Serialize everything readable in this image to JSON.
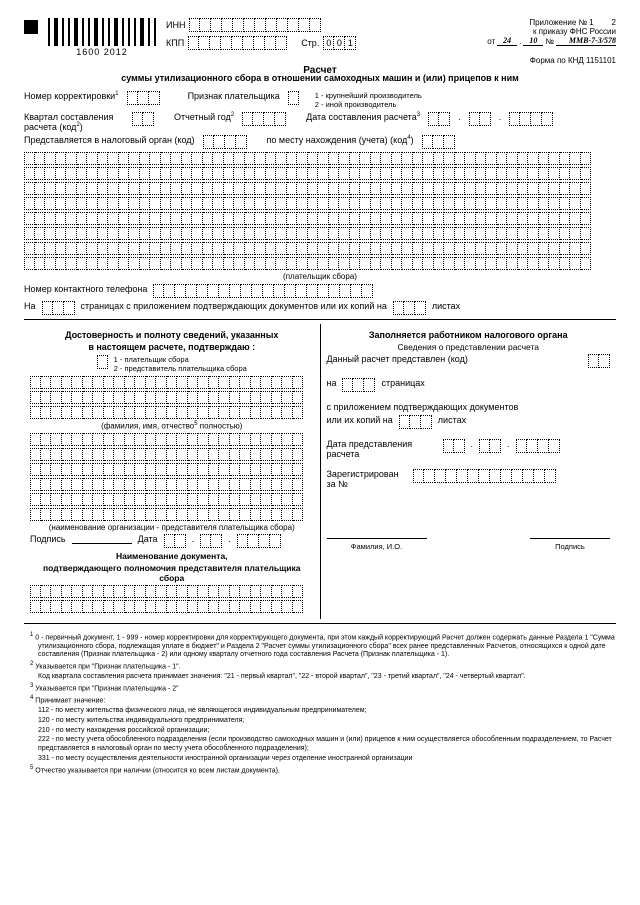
{
  "header": {
    "barcode_number": "1600 2012",
    "inn_label": "ИНН",
    "kpp_label": "КПП",
    "str_label": "Стр.",
    "str_value": [
      "0",
      "0",
      "1"
    ],
    "app_line1": "Приложение № 1",
    "app_line2": "к приказу ФНС России",
    "app_page": "2",
    "ot_label": "от",
    "ot_day": "24",
    "ot_month": "10",
    "no_label": "№",
    "no_hand": "ММВ-7-3/578"
  },
  "title": "Расчет",
  "subtitle": "суммы утилизационного сбора в отношении самоходных машин и (или) прицепов к ним",
  "forma": "Форма по КНД 1151101",
  "fields": {
    "nomer_korr": "Номер корректировки",
    "priznak": "Признак плательщика",
    "priznak_note1": "1 - крупнейший производитель",
    "priznak_note2": "2 - иной производитель",
    "kvartal": "Квартал составления расчета (код",
    "otchet_god": "Отчетный год",
    "data_sost": "Дата составления расчета",
    "predst": "Представляется в налоговый орган (код)",
    "po_mestu": "по месту нахождения (учета) (код",
    "platelshik": "(плательщик сбора)",
    "tel": "Номер контактного телефона",
    "na": "На",
    "stranicah": "страницах с приложением подтверждающих документов или их копий на",
    "listah": "листах"
  },
  "left": {
    "h1": "Достоверность и полноту сведений, указанных",
    "h2": "в настоящем расчете, подтверждаю :",
    "opt1": "1 - плательщик сбора",
    "opt2": "2 - представитель плательщика сбора",
    "fio_note": "(фамилия, имя, отчество",
    "poln": "полностью)",
    "org_note": "(наименование организации - представителя плательщика сбора)",
    "podpis": "Подпись",
    "data": "Дата",
    "doc_h": "Наименование документа,",
    "doc_h2": "подтверждающего полномочия представителя плательщика сбора"
  },
  "right": {
    "h": "Заполняется работником налогового органа",
    "h2": "Сведения о представлении расчета",
    "l1": "Данный расчет представлен (код)",
    "l2a": "на",
    "l2b": "страницах",
    "l3": "с приложением подтверждающих документов",
    "l4a": "или их копий на",
    "l4b": "листах",
    "l5": "Дата представления расчета",
    "l6": "Зарегистрирован за №",
    "fio": "Фамилия, И.О.",
    "podpis": "Подпись"
  },
  "footnotes": {
    "f1": "0 - первичный документ, 1 - 999 - номер корректировки для корректирующего документа, при этом каждый корректирующий Расчет должен содержать данные Раздела 1 \"Сумма утилизационного сбора, подлежащая уплате в бюджет\" и Раздела 2 \"Расчет суммы утилизационного сбора\" всех ранее представленных Расчетов, относящихся к одной дате составления (Признак плательщика - 2) или одному кварталу отчетного года составления Расчета (Признак плательщика - 1).",
    "f2": "Указывается при \"Признак плательщика - 1\".",
    "f2b": "Код квартала составления расчета принимает значения: \"21 - первый квартал\", \"22 - второй квартал\", \"23 - третий квартал\", \"24 - четвертый квартал\".",
    "f3": "Указывается при \"Признак плательщика - 2\"",
    "f4": "Принимает значение:",
    "f4a": "112 - по месту жительства физического лица, не являющегося индивидуальным предпринимателем;",
    "f4b": "120 - по месту жительства индивидуального предпринимателя;",
    "f4c": "210 - по месту нахождения российской организации;",
    "f4d": "222 - по месту учета обособленного подразделения (если производство самоходных машин и (или) прицепов к ним осуществляется обособленным подразделением, то Расчет представляется в налоговый орган по месту учета обособленного подразделения);",
    "f4e": "331 - по месту осуществления деятельности иностранной организации через отделение иностранной организации",
    "f5": "Отчество указывается при наличии (относится ко всем листам документа)."
  }
}
